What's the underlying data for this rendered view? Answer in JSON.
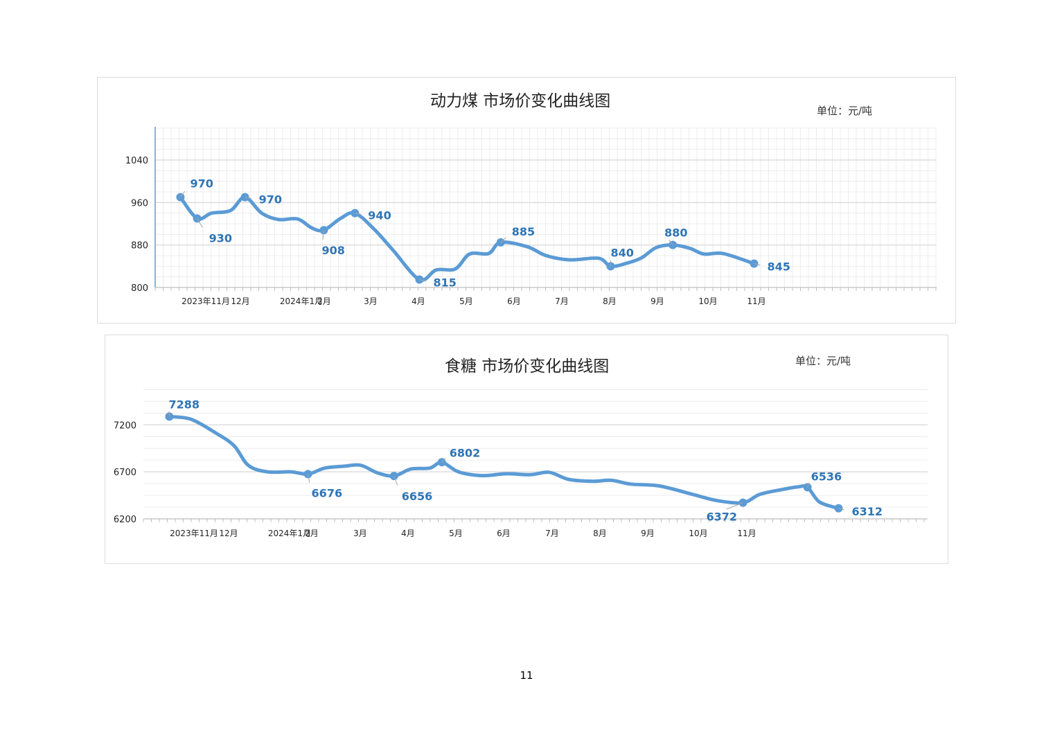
{
  "chart_data": [
    {
      "type": "line",
      "title": "动力煤  市场价变化曲线图",
      "unit_label": "单位：元/吨",
      "categories": [
        "2023年11月",
        "12月",
        "2024年1月",
        "2月",
        "3月",
        "4月",
        "5月",
        "6月",
        "7月",
        "8月",
        "9月",
        "10月",
        "11月"
      ],
      "x_range": [
        0,
        16.5
      ],
      "ylim": [
        800,
        1100
      ],
      "yticks": [
        800,
        880,
        960,
        1040
      ],
      "grid": true,
      "series_color": "#5b9bd5",
      "label_color": "#2e75b6",
      "series": [
        {
          "values": [
            {
              "x": 0.05,
              "y": 970
            },
            {
              "x": 0.4,
              "y": 930
            },
            {
              "x": 0.7,
              "y": 940
            },
            {
              "x": 1.1,
              "y": 945
            },
            {
              "x": 1.4,
              "y": 970
            },
            {
              "x": 1.75,
              "y": 940
            },
            {
              "x": 2.1,
              "y": 928
            },
            {
              "x": 2.5,
              "y": 929
            },
            {
              "x": 2.8,
              "y": 912
            },
            {
              "x": 3.05,
              "y": 908
            },
            {
              "x": 3.4,
              "y": 930
            },
            {
              "x": 3.7,
              "y": 940
            },
            {
              "x": 4.1,
              "y": 910
            },
            {
              "x": 4.5,
              "y": 870
            },
            {
              "x": 5.05,
              "y": 815
            },
            {
              "x": 5.4,
              "y": 833
            },
            {
              "x": 5.8,
              "y": 835
            },
            {
              "x": 6.1,
              "y": 863
            },
            {
              "x": 6.5,
              "y": 864
            },
            {
              "x": 6.75,
              "y": 885
            },
            {
              "x": 7.3,
              "y": 877
            },
            {
              "x": 7.7,
              "y": 860
            },
            {
              "x": 8.2,
              "y": 852
            },
            {
              "x": 8.8,
              "y": 855
            },
            {
              "x": 9.05,
              "y": 840
            },
            {
              "x": 9.4,
              "y": 846
            },
            {
              "x": 9.7,
              "y": 856
            },
            {
              "x": 10.0,
              "y": 875
            },
            {
              "x": 10.35,
              "y": 880
            },
            {
              "x": 10.7,
              "y": 874
            },
            {
              "x": 11.0,
              "y": 863
            },
            {
              "x": 11.4,
              "y": 864
            },
            {
              "x": 12.05,
              "y": 845
            }
          ],
          "markers": [
            {
              "x": 0.05,
              "y": 970,
              "label": "970"
            },
            {
              "x": 0.4,
              "y": 930,
              "label": "930"
            },
            {
              "x": 1.4,
              "y": 970,
              "label": "970"
            },
            {
              "x": 3.05,
              "y": 908,
              "label": "908"
            },
            {
              "x": 3.7,
              "y": 940,
              "label": "940"
            },
            {
              "x": 5.05,
              "y": 815,
              "label": "815"
            },
            {
              "x": 6.75,
              "y": 885,
              "label": "885"
            },
            {
              "x": 9.05,
              "y": 840,
              "label": "840"
            },
            {
              "x": 10.35,
              "y": 880,
              "label": "880"
            },
            {
              "x": 12.05,
              "y": 845,
              "label": "845"
            }
          ]
        }
      ]
    },
    {
      "type": "line",
      "title": "食糖  市场价变化曲线图",
      "unit_label": "单位：元/吨",
      "categories": [
        "2023年11月",
        "12月",
        "2024年1月",
        "2月",
        "3月",
        "4月",
        "5月",
        "6月",
        "7月",
        "8月",
        "9月",
        "10月",
        "11月"
      ],
      "x_range": [
        0,
        16.5
      ],
      "ylim": [
        6200,
        7600
      ],
      "yticks": [
        6200,
        6700,
        7200
      ],
      "grid": true,
      "series_color": "#5b9bd5",
      "label_color": "#2e75b6",
      "series": [
        {
          "values": [
            {
              "x": 0.05,
              "y": 7288
            },
            {
              "x": 0.5,
              "y": 7260
            },
            {
              "x": 1.0,
              "y": 7120
            },
            {
              "x": 1.4,
              "y": 6980
            },
            {
              "x": 1.7,
              "y": 6770
            },
            {
              "x": 2.1,
              "y": 6700
            },
            {
              "x": 2.6,
              "y": 6700
            },
            {
              "x": 2.95,
              "y": 6676
            },
            {
              "x": 3.3,
              "y": 6740
            },
            {
              "x": 3.7,
              "y": 6760
            },
            {
              "x": 4.05,
              "y": 6770
            },
            {
              "x": 4.4,
              "y": 6690
            },
            {
              "x": 4.75,
              "y": 6656
            },
            {
              "x": 5.1,
              "y": 6730
            },
            {
              "x": 5.5,
              "y": 6740
            },
            {
              "x": 5.75,
              "y": 6802
            },
            {
              "x": 6.1,
              "y": 6700
            },
            {
              "x": 6.6,
              "y": 6660
            },
            {
              "x": 7.1,
              "y": 6680
            },
            {
              "x": 7.6,
              "y": 6670
            },
            {
              "x": 8.0,
              "y": 6695
            },
            {
              "x": 8.4,
              "y": 6620
            },
            {
              "x": 8.9,
              "y": 6600
            },
            {
              "x": 9.3,
              "y": 6610
            },
            {
              "x": 9.7,
              "y": 6570
            },
            {
              "x": 10.3,
              "y": 6550
            },
            {
              "x": 11.0,
              "y": 6460
            },
            {
              "x": 11.5,
              "y": 6395
            },
            {
              "x": 12.05,
              "y": 6372
            },
            {
              "x": 12.4,
              "y": 6460
            },
            {
              "x": 12.85,
              "y": 6510
            },
            {
              "x": 13.2,
              "y": 6540
            },
            {
              "x": 13.4,
              "y": 6536
            },
            {
              "x": 13.65,
              "y": 6380
            },
            {
              "x": 14.05,
              "y": 6312
            }
          ],
          "markers": [
            {
              "x": 0.05,
              "y": 7288,
              "label": "7288"
            },
            {
              "x": 2.95,
              "y": 6676,
              "label": "6676"
            },
            {
              "x": 4.75,
              "y": 6656,
              "label": "6656"
            },
            {
              "x": 5.75,
              "y": 6802,
              "label": "6802"
            },
            {
              "x": 12.05,
              "y": 6372,
              "label": "6372"
            },
            {
              "x": 13.4,
              "y": 6536,
              "label": "6536"
            },
            {
              "x": 14.05,
              "y": 6312,
              "label": "6312"
            }
          ]
        }
      ]
    }
  ],
  "page": {
    "number": "11"
  }
}
